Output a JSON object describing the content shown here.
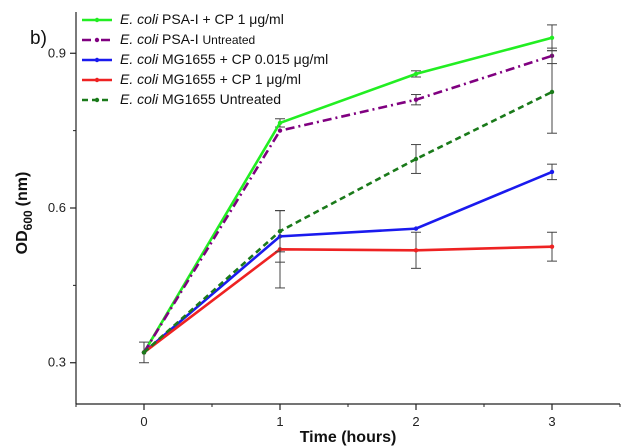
{
  "panel_label": "b)",
  "chart_data": {
    "type": "line",
    "title": "",
    "xlabel": "Time (hours)",
    "ylabel_main": "OD",
    "ylabel_sub": "600",
    "ylabel_unit": "(nm)",
    "x": [
      0,
      1,
      2,
      3
    ],
    "xticks": [
      "0",
      "1",
      "2",
      "3"
    ],
    "yticks": [
      "0.3",
      "0.6",
      "0.9"
    ],
    "xlim": [
      -0.5,
      3.5
    ],
    "ylim": [
      0.22,
      0.98
    ],
    "grid": false,
    "legend_position": "top-left",
    "series": [
      {
        "name": "E. coli PSA-I + CP 1 μg/ml",
        "italic": "E. coli",
        "rest": " PSA-I + CP 1 μg/ml",
        "color": "#22ee22",
        "dash": "solid",
        "values": [
          0.32,
          0.765,
          0.86,
          0.93
        ],
        "errors": [
          0.0,
          0.008,
          0.006,
          0.025
        ]
      },
      {
        "name": "E. coli PSA-I Untreated",
        "italic": "E. coli",
        "rest": " PSA-I ",
        "rest_small": "Untreated",
        "color": "#800080",
        "dash": "dashdot",
        "values": [
          0.32,
          0.75,
          0.81,
          0.895
        ],
        "errors": [
          0.0,
          0.0,
          0.01,
          0.015
        ]
      },
      {
        "name": "E. coli MG1655 + CP 0.015 μg/ml",
        "italic": "E. coli",
        "rest": " MG1655 + CP 0.015 μg/ml",
        "color": "#1a1aee",
        "dash": "solid",
        "values": [
          0.32,
          0.545,
          0.56,
          0.67
        ],
        "errors": [
          0.0,
          0.05,
          0.0,
          0.015
        ]
      },
      {
        "name": "E. coli MG1655 + CP 1 μg/ml",
        "italic": "E. coli",
        "rest": " MG1655 + CP 1 μg/ml",
        "color": "#ee2222",
        "dash": "solid",
        "values": [
          0.32,
          0.52,
          0.518,
          0.525
        ],
        "errors": [
          0.02,
          0.075,
          0.035,
          0.028
        ]
      },
      {
        "name": "E. coli MG1655 Untreated",
        "italic": "E. coli",
        "rest": " MG1655 Untreated",
        "color": "#1a7a1a",
        "dash": "dash",
        "values": [
          0.32,
          0.555,
          0.695,
          0.825
        ],
        "errors": [
          0.0,
          0.04,
          0.028,
          0.08
        ]
      }
    ]
  }
}
